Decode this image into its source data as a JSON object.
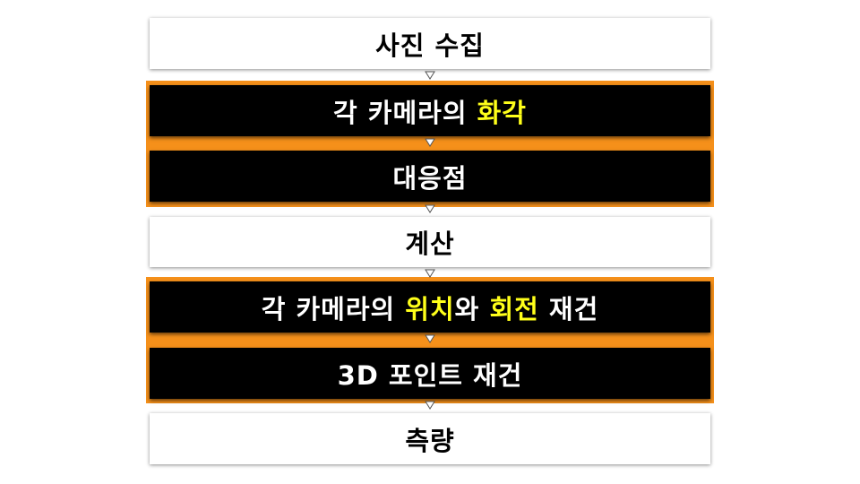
{
  "steps": [
    {
      "id": "s1",
      "parts": [
        {
          "text": "사진 수집",
          "highlight": false
        }
      ]
    },
    {
      "id": "s2",
      "parts": [
        {
          "text": "각 카메라의 ",
          "highlight": false
        },
        {
          "text": "화각",
          "highlight": true
        }
      ]
    },
    {
      "id": "s3",
      "parts": [
        {
          "text": "대응점",
          "highlight": false
        }
      ]
    },
    {
      "id": "s4",
      "parts": [
        {
          "text": "계산",
          "highlight": false
        }
      ]
    },
    {
      "id": "s5",
      "parts": [
        {
          "text": "각 카메라의 ",
          "highlight": false
        },
        {
          "text": "위치",
          "highlight": true
        },
        {
          "text": "와 ",
          "highlight": false
        },
        {
          "text": "회전",
          "highlight": true
        },
        {
          "text": " 재건",
          "highlight": false
        }
      ]
    },
    {
      "id": "s6",
      "parts": [
        {
          "text": "3D 포인트 재건",
          "highlight": false
        }
      ]
    },
    {
      "id": "s7",
      "parts": [
        {
          "text": "측량",
          "highlight": false
        }
      ]
    }
  ],
  "colors": {
    "group_border": "#f5901a",
    "highlight_text": "#ffff1a",
    "dark_box": "#000000",
    "light_box": "#ffffff"
  }
}
